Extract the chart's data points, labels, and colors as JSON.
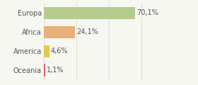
{
  "categories": [
    "Europa",
    "Africa",
    "America",
    "Oceania"
  ],
  "values": [
    70.1,
    24.1,
    4.6,
    1.1
  ],
  "labels": [
    "70,1%",
    "24,1%",
    "4,6%",
    "1,1%"
  ],
  "bar_colors": [
    "#b5cc8e",
    "#e8b07a",
    "#e8c84a",
    "#e06060"
  ],
  "background_color": "#f7f7f2",
  "xlim": [
    0,
    100
  ],
  "bar_height": 0.65,
  "label_fontsize": 7,
  "category_fontsize": 7,
  "grid_color": "#e0e0d8",
  "text_color": "#555555"
}
